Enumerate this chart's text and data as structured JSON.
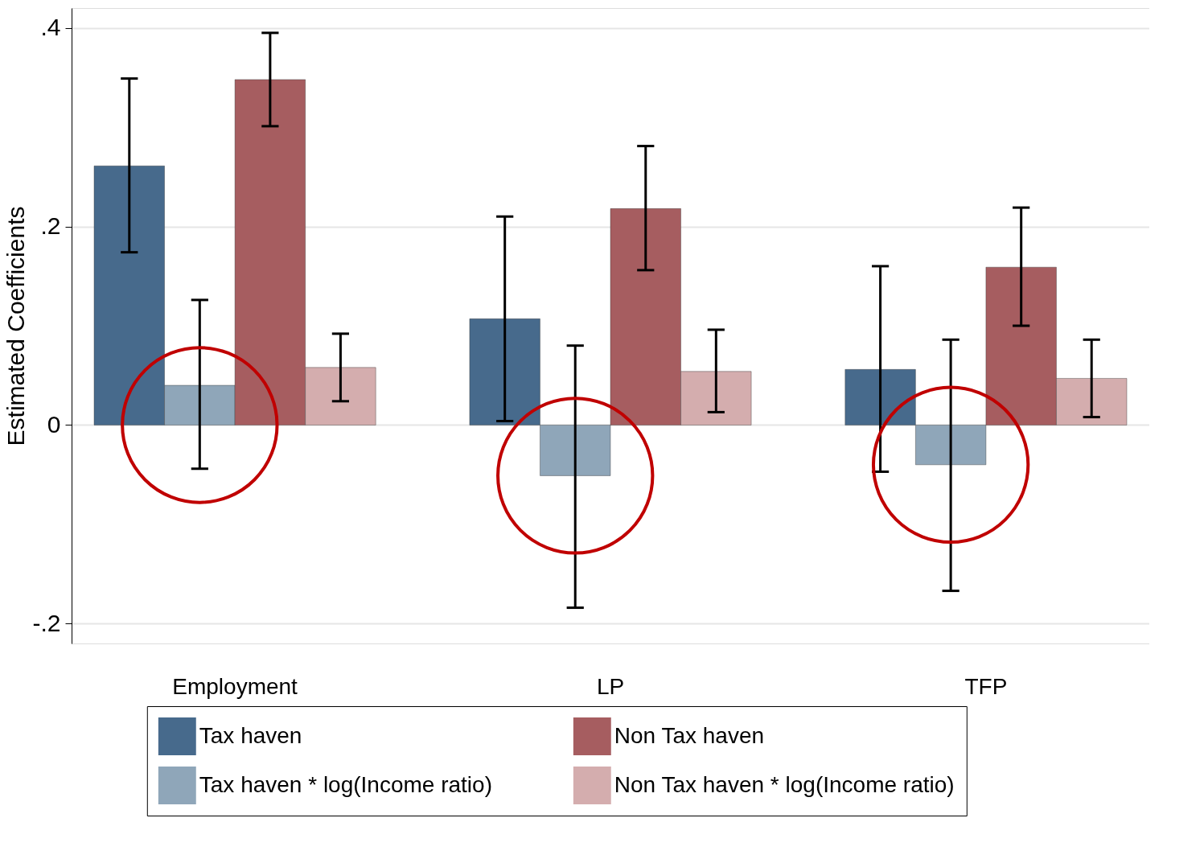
{
  "chart_data": {
    "type": "bar",
    "ylabel": "Estimated Coefficients",
    "categories": [
      "Employment",
      "LP",
      "TFP"
    ],
    "series": [
      {
        "name": "Tax haven",
        "color": "#476a8c",
        "values": [
          0.261,
          0.107,
          0.056
        ],
        "errors": [
          [
            0.174,
            0.349
          ],
          [
            0.004,
            0.21
          ],
          [
            -0.047,
            0.16
          ]
        ]
      },
      {
        "name": "Tax haven * log(Income ratio)",
        "color": "#8fa6b9",
        "values": [
          0.04,
          -0.051,
          -0.04
        ],
        "errors": [
          [
            -0.044,
            0.126
          ],
          [
            -0.184,
            0.08
          ],
          [
            -0.167,
            0.086
          ]
        ]
      },
      {
        "name": "Non Tax haven",
        "color": "#a65d60",
        "values": [
          0.348,
          0.218,
          0.159
        ],
        "errors": [
          [
            0.301,
            0.395
          ],
          [
            0.156,
            0.281
          ],
          [
            0.1,
            0.219
          ]
        ]
      },
      {
        "name": "Non Tax haven * log(Income ratio)",
        "color": "#d4adae",
        "values": [
          0.058,
          0.054,
          0.047
        ],
        "errors": [
          [
            0.024,
            0.092
          ],
          [
            0.013,
            0.096
          ],
          [
            0.008,
            0.086
          ]
        ]
      }
    ],
    "ylim": [
      -0.22,
      0.42
    ],
    "yticks": [
      {
        "value": -0.2,
        "label": "-.2"
      },
      {
        "value": 0,
        "label": "0"
      },
      {
        "value": 0.2,
        "label": ".2"
      },
      {
        "value": 0.4,
        "label": ".4"
      }
    ],
    "grid": "y",
    "legend": "bottom"
  }
}
